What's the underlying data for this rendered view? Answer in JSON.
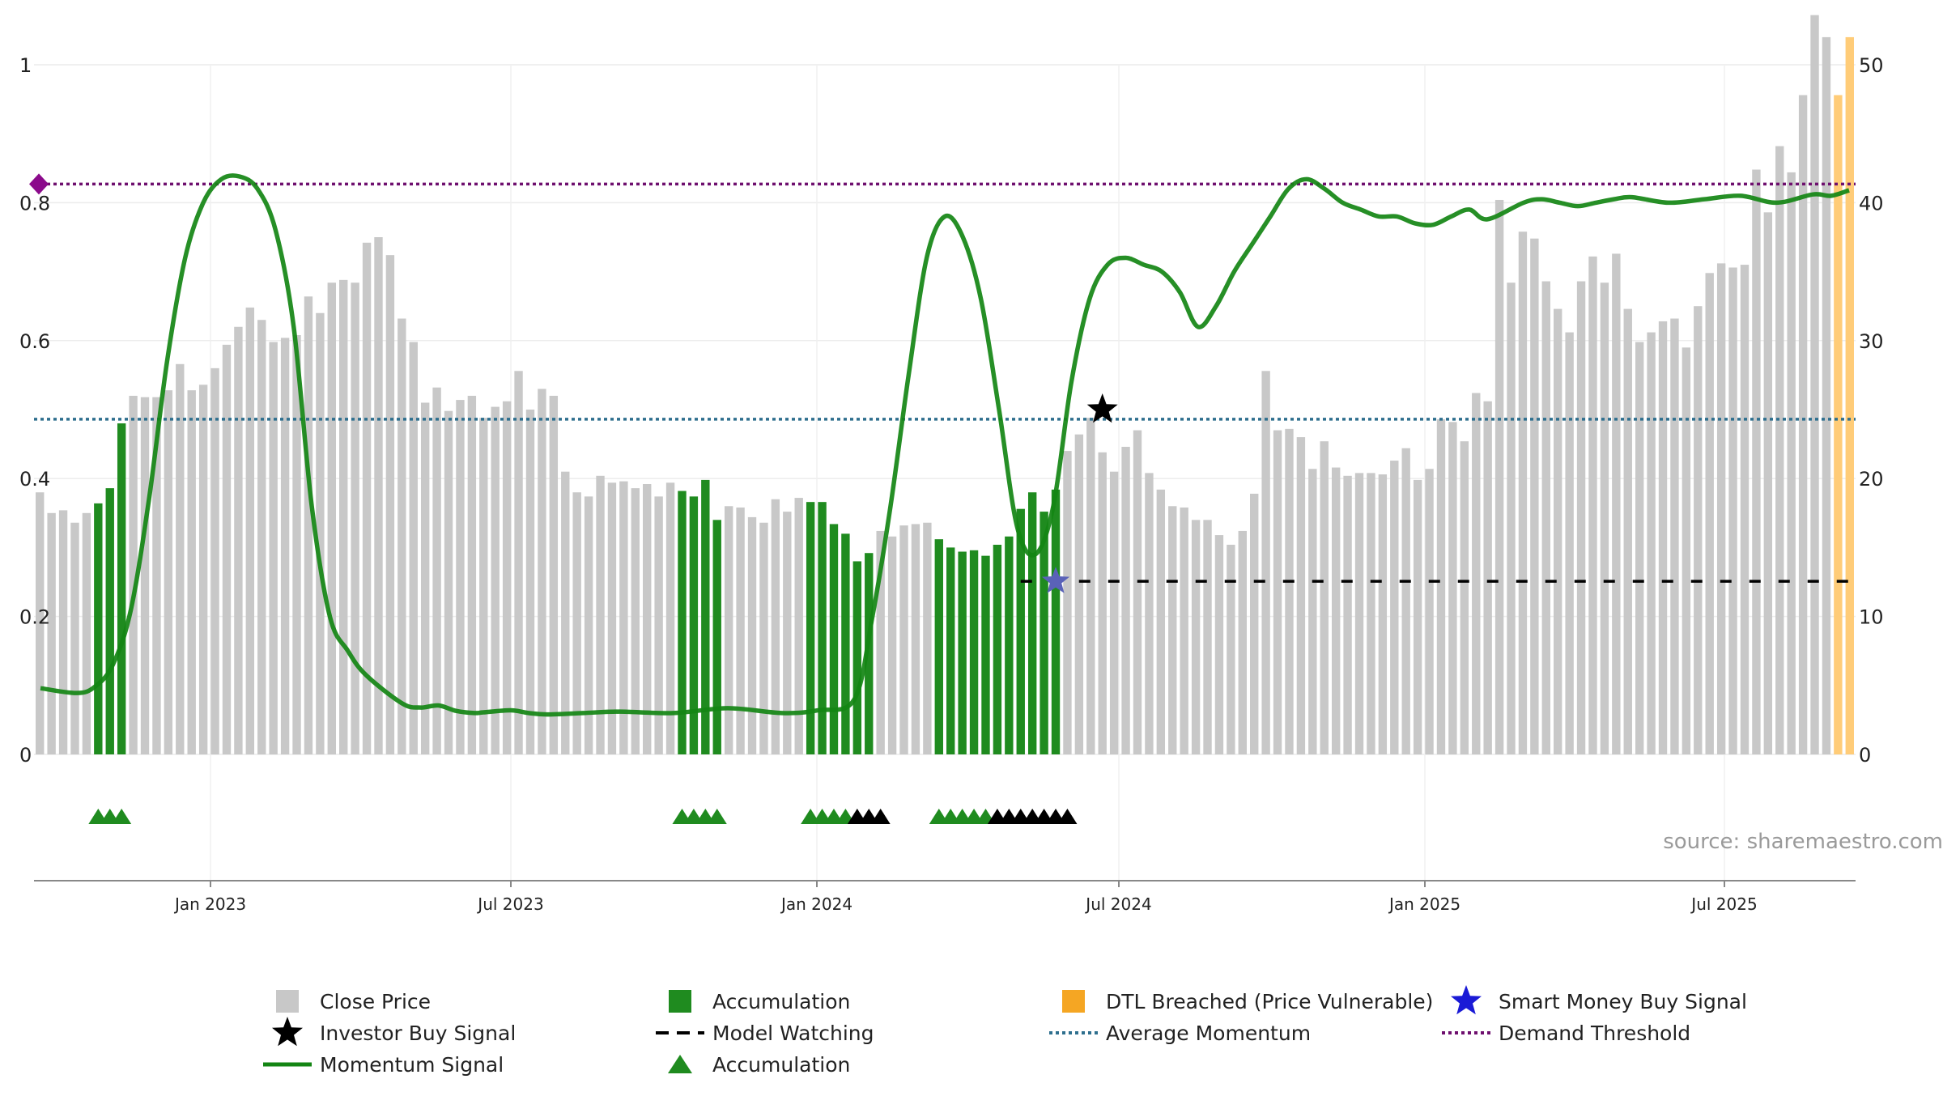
{
  "chart_data": {
    "type": "bar",
    "source_text": "source: sharemaestro.com",
    "x_ticks": [
      "Jan 2023",
      "Jul 2023",
      "Jan 2024",
      "Jul 2024",
      "Jan 2025",
      "Jul 2025"
    ],
    "y_left": {
      "ticks": [
        "0",
        "0.2",
        "0.4",
        "0.6",
        "0.8",
        "1"
      ],
      "range": [
        0,
        1
      ]
    },
    "y_right": {
      "ticks": [
        "0",
        "10",
        "20",
        "30",
        "40",
        "50"
      ],
      "range": [
        0,
        50
      ]
    },
    "bar_states": {
      "gray": "Close Price",
      "green": "Accumulation",
      "orange": "DTL Breached (Price Vulnerable)"
    },
    "close_price": [
      19,
      17.5,
      17.7,
      16.8,
      17.5,
      18.2,
      19.3,
      24,
      26,
      25.9,
      25.9,
      26.4,
      28.3,
      26.4,
      26.8,
      28,
      29.7,
      31,
      32.4,
      31.5,
      29.9,
      30.2,
      30.4,
      33.2,
      32,
      34.2,
      34.4,
      34.2,
      37.1,
      37.5,
      36.2,
      31.6,
      29.9,
      25.5,
      26.6,
      24.9,
      25.7,
      26,
      24.4,
      25.2,
      25.6,
      27.8,
      25,
      26.5,
      26,
      20.5,
      19,
      18.7,
      20.2,
      19.7,
      19.8,
      19.3,
      19.6,
      18.7,
      19.7,
      19.1,
      18.7,
      19.9,
      17,
      18,
      17.9,
      17.2,
      16.8,
      18.5,
      17.6,
      18.6,
      18.3,
      18.3,
      16.7,
      16,
      14,
      14.6,
      16.2,
      15.8,
      16.6,
      16.7,
      16.8,
      15.6,
      15,
      14.7,
      14.8,
      14.4,
      15.2,
      15.8,
      17.8,
      19,
      17.6,
      19.2,
      22,
      23.2,
      24.4,
      21.9,
      20.5,
      22.3,
      23.5,
      20.4,
      19.2,
      18,
      17.9,
      17,
      17,
      15.9,
      15.2,
      16.2,
      18.9,
      27.8,
      23.5,
      23.6,
      23,
      20.7,
      22.7,
      20.8,
      20.2,
      20.4,
      20.4,
      20.3,
      21.3,
      22.2,
      19.9,
      20.7,
      24.3,
      24.1,
      22.7,
      26.2,
      25.6,
      40.2,
      34.2,
      37.9,
      37.4,
      34.3,
      32.3,
      30.6,
      34.3,
      36.1,
      34.2,
      36.3,
      32.3,
      29.9,
      30.6,
      31.4,
      31.6,
      29.5,
      32.5,
      34.9,
      35.6,
      35.3,
      35.5,
      42.4,
      39.3,
      44.1,
      42.2,
      47.8,
      53.6,
      52,
      47.8,
      52
    ],
    "bar_state": [
      "g",
      "g",
      "g",
      "g",
      "g",
      "a",
      "a",
      "a",
      "g",
      "g",
      "g",
      "g",
      "g",
      "g",
      "g",
      "g",
      "g",
      "g",
      "g",
      "g",
      "g",
      "g",
      "g",
      "g",
      "g",
      "g",
      "g",
      "g",
      "g",
      "g",
      "g",
      "g",
      "g",
      "g",
      "g",
      "g",
      "g",
      "g",
      "g",
      "g",
      "g",
      "g",
      "g",
      "g",
      "g",
      "g",
      "g",
      "g",
      "g",
      "g",
      "g",
      "g",
      "g",
      "g",
      "g",
      "a",
      "a",
      "a",
      "a",
      "g",
      "g",
      "g",
      "g",
      "g",
      "g",
      "g",
      "a",
      "a",
      "a",
      "a",
      "a",
      "a",
      "g",
      "g",
      "g",
      "g",
      "g",
      "a",
      "a",
      "a",
      "a",
      "a",
      "a",
      "a",
      "a",
      "a",
      "a",
      "a",
      "g",
      "g",
      "g",
      "g",
      "g",
      "g",
      "g",
      "g",
      "g",
      "g",
      "g",
      "g",
      "g",
      "g",
      "g",
      "g",
      "g",
      "g",
      "g",
      "g",
      "g",
      "g",
      "g",
      "g",
      "g",
      "g",
      "g",
      "g",
      "g",
      "g",
      "g",
      "g",
      "g",
      "g",
      "g",
      "g",
      "g",
      "g",
      "g",
      "g",
      "g",
      "g",
      "g",
      "g",
      "g",
      "g",
      "g",
      "g",
      "g",
      "g",
      "g",
      "g",
      "g",
      "g",
      "g",
      "g",
      "g",
      "g",
      "g",
      "g",
      "g",
      "g",
      "g",
      "g",
      "g",
      "g",
      "o",
      "o",
      "o",
      "o",
      "o"
    ],
    "momentum_signal": {
      "x": [
        0,
        0.02,
        0.03,
        0.04,
        0.05,
        0.06,
        0.07,
        0.08,
        0.09,
        0.1,
        0.11,
        0.12,
        0.13,
        0.14,
        0.15,
        0.16,
        0.17,
        0.18,
        0.2,
        0.21,
        0.22,
        0.23,
        0.24,
        0.245,
        0.26,
        0.27,
        0.28,
        0.3,
        0.32,
        0.35,
        0.38,
        0.41,
        0.43,
        0.45,
        0.46,
        0.47,
        0.48,
        0.49,
        0.5,
        0.51,
        0.52,
        0.53,
        0.54,
        0.55,
        0.56,
        0.57,
        0.58,
        0.59,
        0.6,
        0.61,
        0.62,
        0.63,
        0.64,
        0.65,
        0.66,
        0.67,
        0.68,
        0.69,
        0.7,
        0.71,
        0.72,
        0.73,
        0.74,
        0.75,
        0.76,
        0.77,
        0.78,
        0.79,
        0.8,
        0.82,
        0.83,
        0.84,
        0.85,
        0.86,
        0.87,
        0.88,
        0.9,
        0.92,
        0.94,
        0.96,
        0.98,
        0.99,
        1
      ],
      "y": [
        0.096,
        0.089,
        0.098,
        0.13,
        0.21,
        0.37,
        0.57,
        0.72,
        0.8,
        0.834,
        0.838,
        0.82,
        0.76,
        0.62,
        0.36,
        0.2,
        0.15,
        0.115,
        0.074,
        0.068,
        0.071,
        0.063,
        0.06,
        0.061,
        0.064,
        0.06,
        0.058,
        0.06,
        0.062,
        0.06,
        0.067,
        0.06,
        0.064,
        0.08,
        0.2,
        0.36,
        0.55,
        0.72,
        0.78,
        0.75,
        0.66,
        0.5,
        0.33,
        0.29,
        0.36,
        0.54,
        0.66,
        0.71,
        0.72,
        0.71,
        0.7,
        0.67,
        0.62,
        0.65,
        0.7,
        0.74,
        0.78,
        0.82,
        0.834,
        0.82,
        0.8,
        0.79,
        0.78,
        0.78,
        0.77,
        0.768,
        0.78,
        0.79,
        0.776,
        0.8,
        0.805,
        0.8,
        0.795,
        0.8,
        0.805,
        0.808,
        0.8,
        0.805,
        0.81,
        0.8,
        0.812,
        0.81,
        0.818
      ]
    },
    "thresholds": {
      "demand_threshold": 0.827,
      "average_momentum": 0.486,
      "model_watching_level": 0.251
    },
    "investor_buy_signal": {
      "bar_index": 91,
      "y": 0.5
    },
    "smart_money_buy_signal": {
      "bar_index": 87,
      "y": 0.251
    },
    "accumulation_marker_indices": {
      "green": [
        5,
        6,
        7,
        55,
        56,
        57,
        58,
        66,
        67,
        68,
        69,
        77,
        78,
        79,
        80,
        81
      ],
      "black": [
        70,
        71,
        72,
        82,
        83,
        84,
        85,
        86,
        87,
        88
      ]
    },
    "legend": [
      {
        "label": "Close Price",
        "swatch": "gray-square"
      },
      {
        "label": "Accumulation",
        "swatch": "green-square"
      },
      {
        "label": "DTL Breached (Price Vulnerable)",
        "swatch": "orange-square"
      },
      {
        "label": "Smart Money Buy Signal",
        "swatch": "blue-star"
      },
      {
        "label": "Investor Buy Signal",
        "swatch": "black-star"
      },
      {
        "label": "Model Watching",
        "swatch": "black-dash"
      },
      {
        "label": "Average Momentum",
        "swatch": "blue-dotted"
      },
      {
        "label": "Demand Threshold",
        "swatch": "purple-dotted"
      },
      {
        "label": "Momentum Signal",
        "swatch": "green-line"
      },
      {
        "label": "Accumulation",
        "swatch": "green-triangle"
      }
    ],
    "colors": {
      "gray": "#c8c8c8",
      "green": "#1f8b1f",
      "orange": "#ffcc78",
      "momentum": "#138513",
      "avg_momentum": "#2e6f8e",
      "demand": "#6e0f6e",
      "model_watching": "#000000",
      "smart_money": "#1a1ad6"
    }
  }
}
